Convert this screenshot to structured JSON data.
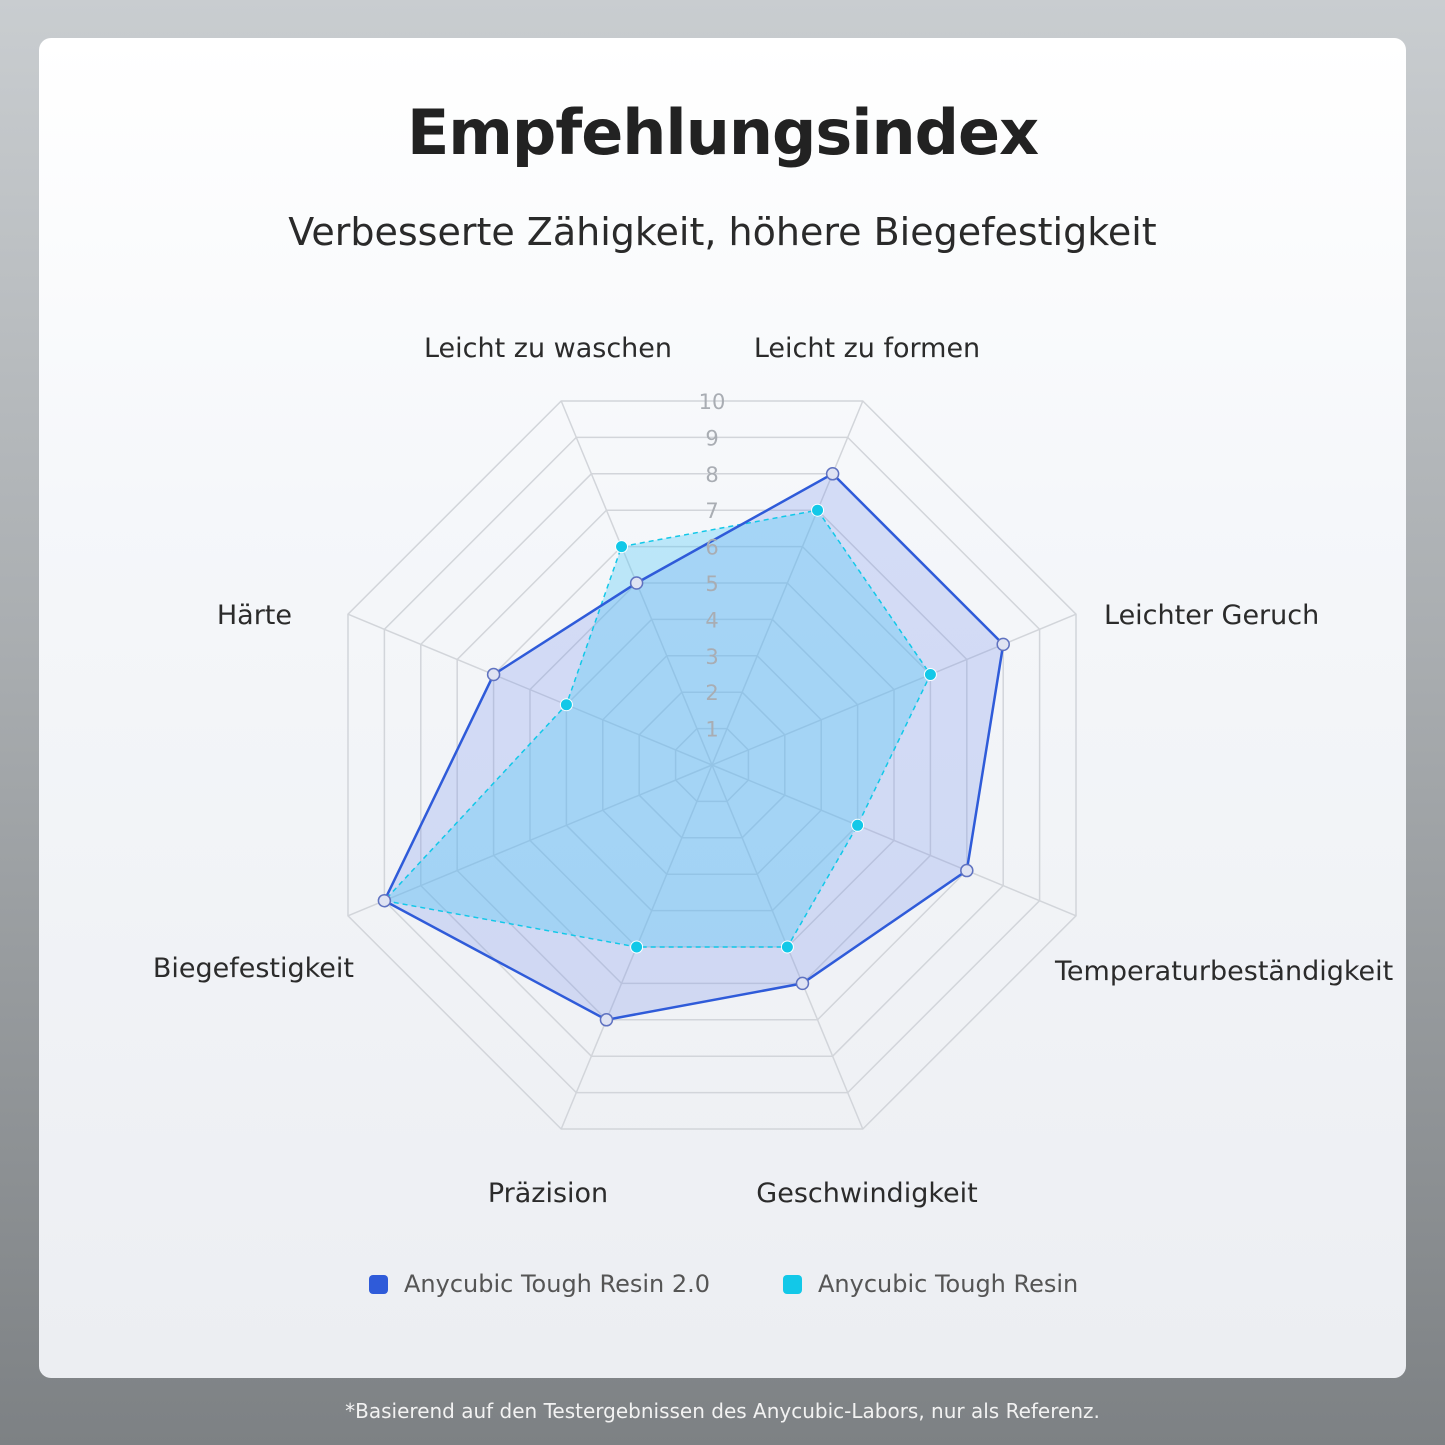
{
  "title": "Empfehlungsindex",
  "subtitle": "Verbesserte Zähigkeit, höhere Biegefestigkeit",
  "footnote": "*Basierend auf den Testergebnissen des Anycubic-Labors, nur als Referenz.",
  "chart_data": {
    "type": "radar",
    "axes": [
      "Leicht zu formen",
      "Leichter Geruch",
      "Temperaturbeständigkeit",
      "Geschwindigkeit",
      "Präzision",
      "Biegefestigkeit",
      "Härte",
      "Leicht zu waschen"
    ],
    "range": [
      0,
      10
    ],
    "ticks": [
      "1",
      "2",
      "3",
      "4",
      "5",
      "6",
      "7",
      "8",
      "9",
      "10"
    ],
    "series": [
      {
        "name": "Anycubic Tough Resin 2.0",
        "color": "#2f5bd9",
        "values": [
          8,
          8,
          7,
          6,
          7,
          9,
          6,
          5
        ]
      },
      {
        "name": "Anycubic Tough Resin",
        "color": "#12c8e8",
        "values": [
          7,
          6,
          4,
          5,
          5,
          9,
          4,
          6
        ]
      }
    ],
    "legend_position": "bottom"
  }
}
